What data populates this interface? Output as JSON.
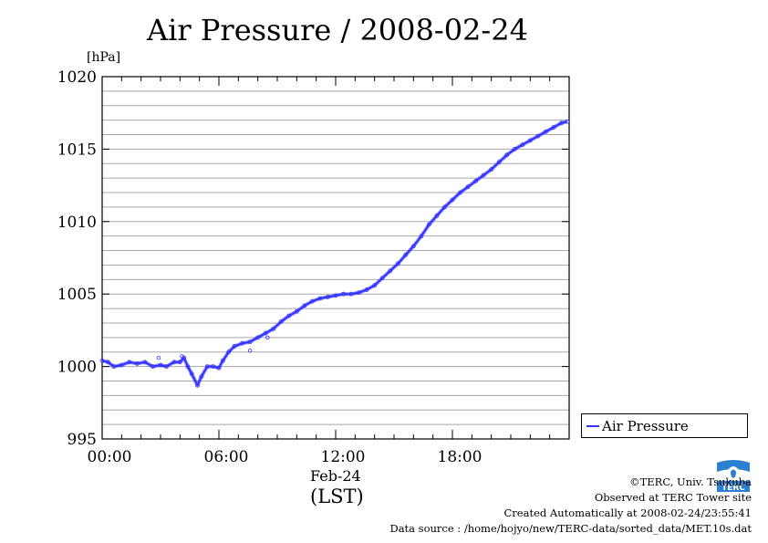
{
  "chart_data": {
    "type": "line",
    "title": "Air Pressure / 2008-02-24",
    "ylabel": "[hPa]",
    "xlabel": "(LST)",
    "date_label": "Feb-24",
    "ylim": [
      995,
      1020
    ],
    "yticks": [
      995,
      1000,
      1005,
      1010,
      1015,
      1020
    ],
    "xlim_hours": [
      0,
      24
    ],
    "xticks": [
      {
        "hour": 0,
        "label": "00:00"
      },
      {
        "hour": 6,
        "label": "06:00"
      },
      {
        "hour": 12,
        "label": "12:00"
      },
      {
        "hour": 18,
        "label": "18:00"
      }
    ],
    "grid": true,
    "legend_position": "right-bottom",
    "series": [
      {
        "name": "Air Pressure",
        "color": "#3333ff",
        "points": [
          [
            0.0,
            1000.4
          ],
          [
            0.3,
            1000.3
          ],
          [
            0.6,
            1000.0
          ],
          [
            1.0,
            1000.1
          ],
          [
            1.4,
            1000.3
          ],
          [
            1.8,
            1000.2
          ],
          [
            2.2,
            1000.3
          ],
          [
            2.6,
            1000.0
          ],
          [
            3.0,
            1000.1
          ],
          [
            3.3,
            1000.0
          ],
          [
            3.7,
            1000.3
          ],
          [
            4.0,
            1000.3
          ],
          [
            4.2,
            1000.6
          ],
          [
            4.4,
            1000.0
          ],
          [
            4.6,
            999.5
          ],
          [
            4.9,
            998.7
          ],
          [
            5.1,
            999.3
          ],
          [
            5.4,
            1000.0
          ],
          [
            5.7,
            1000.0
          ],
          [
            6.0,
            999.9
          ],
          [
            6.2,
            1000.4
          ],
          [
            6.5,
            1001.0
          ],
          [
            6.8,
            1001.4
          ],
          [
            7.2,
            1001.6
          ],
          [
            7.6,
            1001.7
          ],
          [
            8.0,
            1002.0
          ],
          [
            8.4,
            1002.3
          ],
          [
            8.8,
            1002.6
          ],
          [
            9.2,
            1003.1
          ],
          [
            9.6,
            1003.5
          ],
          [
            10.0,
            1003.8
          ],
          [
            10.4,
            1004.2
          ],
          [
            10.8,
            1004.5
          ],
          [
            11.2,
            1004.7
          ],
          [
            11.6,
            1004.8
          ],
          [
            12.0,
            1004.9
          ],
          [
            12.4,
            1005.0
          ],
          [
            12.8,
            1005.0
          ],
          [
            13.2,
            1005.1
          ],
          [
            13.6,
            1005.3
          ],
          [
            14.0,
            1005.6
          ],
          [
            14.4,
            1006.1
          ],
          [
            14.8,
            1006.6
          ],
          [
            15.2,
            1007.1
          ],
          [
            15.6,
            1007.7
          ],
          [
            16.0,
            1008.3
          ],
          [
            16.4,
            1009.0
          ],
          [
            16.8,
            1009.8
          ],
          [
            17.2,
            1010.4
          ],
          [
            17.6,
            1011.0
          ],
          [
            18.0,
            1011.5
          ],
          [
            18.4,
            1012.0
          ],
          [
            18.8,
            1012.4
          ],
          [
            19.2,
            1012.8
          ],
          [
            19.6,
            1013.2
          ],
          [
            20.0,
            1013.6
          ],
          [
            20.4,
            1014.1
          ],
          [
            20.8,
            1014.6
          ],
          [
            21.2,
            1015.0
          ],
          [
            21.6,
            1015.3
          ],
          [
            22.0,
            1015.6
          ],
          [
            22.4,
            1015.9
          ],
          [
            22.8,
            1016.2
          ],
          [
            23.2,
            1016.5
          ],
          [
            23.6,
            1016.8
          ],
          [
            23.9,
            1016.9
          ]
        ],
        "scatter_outliers": [
          [
            2.9,
            1000.6
          ],
          [
            7.6,
            1001.1
          ],
          [
            8.5,
            1002.0
          ],
          [
            4.1,
            1000.7
          ]
        ]
      }
    ]
  },
  "credits": {
    "copyright": "©TERC, Univ. Tsukuba",
    "observed": "Observed at TERC Tower site",
    "created": "Created Automatically at 2008-02-24/23:55:41",
    "source": "Data source : /home/hojyo/new/TERC-data/sorted_data/MET.10s.dat",
    "logo_text": "TERC"
  }
}
